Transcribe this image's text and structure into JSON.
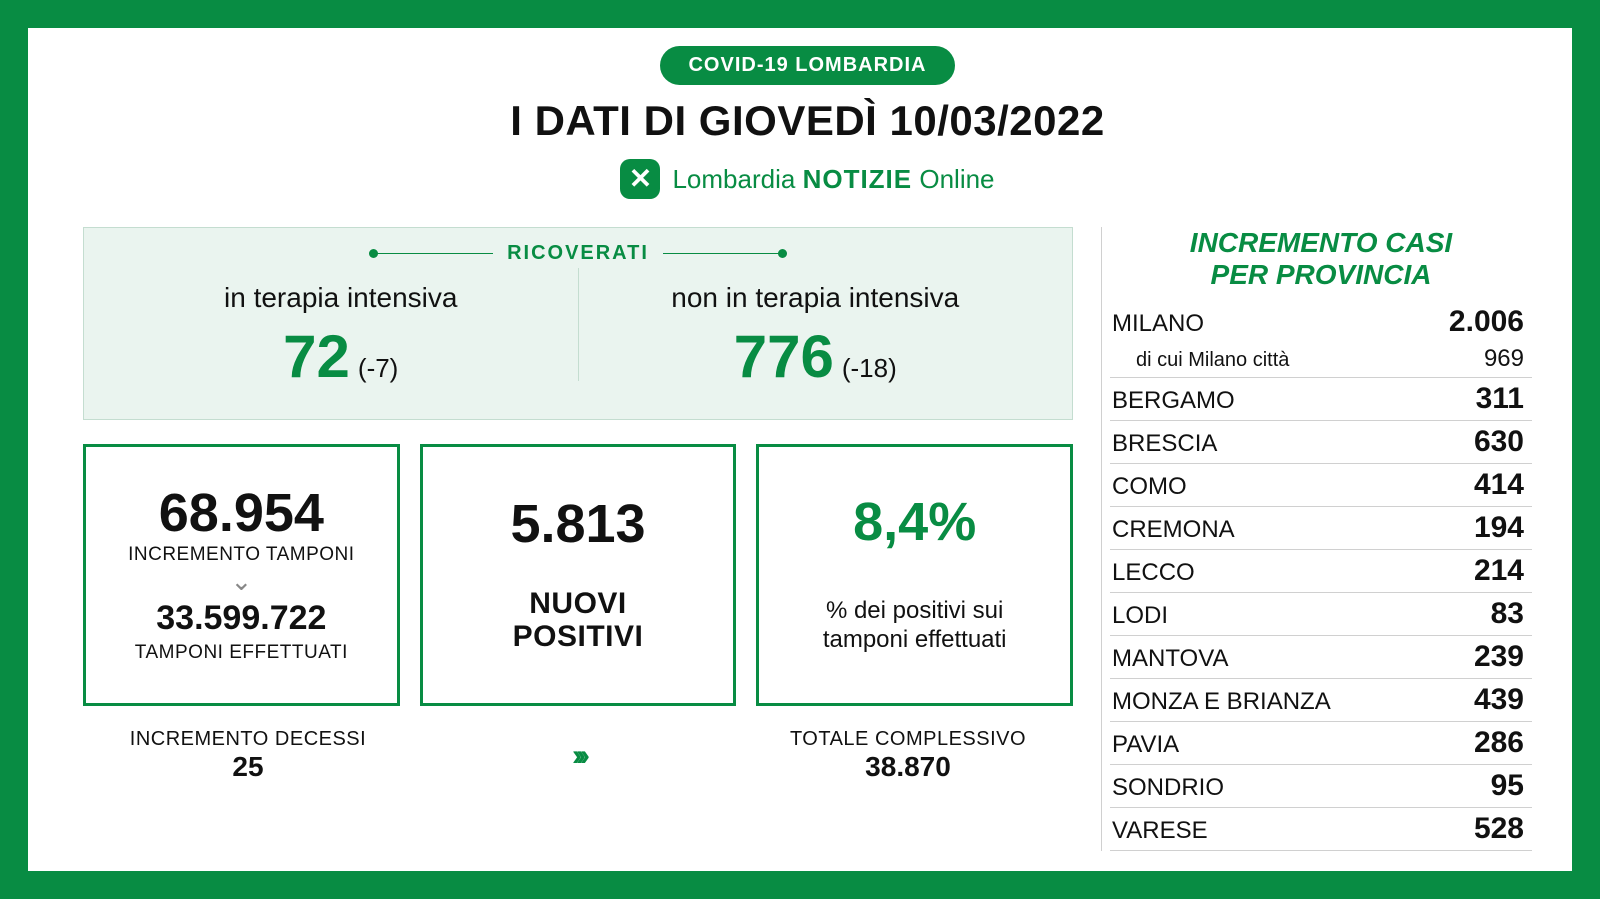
{
  "header": {
    "tag": "COVID-19 LOMBARDIA",
    "title": "I DATI DI GIOVEDÌ 10/03/2022",
    "brand_1": "Lombardia",
    "brand_2": "NOTIZIE",
    "brand_3": "Online"
  },
  "ricoverati": {
    "section_label": "RICOVERATI",
    "intensive_label": "in terapia intensiva",
    "intensive_value": "72",
    "intensive_delta": "(-7)",
    "nonint_label": "non in terapia intensiva",
    "nonint_value": "776",
    "nonint_delta": "(-18)"
  },
  "tamponi": {
    "increment_value": "68.954",
    "increment_label": "INCREMENTO TAMPONI",
    "total_value": "33.599.722",
    "total_label": "TAMPONI EFFETTUATI"
  },
  "positivi": {
    "value": "5.813",
    "label": "NUOVI\nPOSITIVI"
  },
  "percentuale": {
    "value": "8,4%",
    "label": "% dei positivi sui\ntamponi effettuati"
  },
  "decessi": {
    "increment_label": "INCREMENTO DECESSI",
    "increment_value": "25",
    "total_label": "TOTALE COMPLESSIVO",
    "total_value": "38.870"
  },
  "province": {
    "title": "INCREMENTO CASI\nPER PROVINCIA",
    "milano": {
      "name": "MILANO",
      "value": "2.006",
      "sub_label": "di cui Milano città",
      "sub_value": "969"
    },
    "rows": [
      {
        "name": "BERGAMO",
        "value": "311"
      },
      {
        "name": "BRESCIA",
        "value": "630"
      },
      {
        "name": "COMO",
        "value": "414"
      },
      {
        "name": "CREMONA",
        "value": "194"
      },
      {
        "name": "LECCO",
        "value": "214"
      },
      {
        "name": "LODI",
        "value": "83"
      },
      {
        "name": "MANTOVA",
        "value": "239"
      },
      {
        "name": "MONZA E BRIANZA",
        "value": "439"
      },
      {
        "name": "PAVIA",
        "value": "286"
      },
      {
        "name": "SONDRIO",
        "value": "95"
      },
      {
        "name": "VARESE",
        "value": "528"
      }
    ]
  },
  "style": {
    "primary_color": "#088c43",
    "background_color": "#ffffff",
    "panel_color": "#eaf4ef",
    "text_color": "#111111",
    "border_color": "#d0d0d0"
  }
}
